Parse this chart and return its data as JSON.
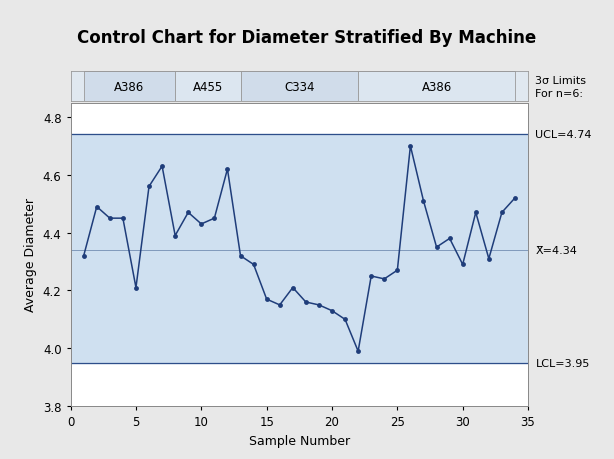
{
  "title": "Control Chart for Diameter Stratified By Machine",
  "xlabel": "Sample Number",
  "ylabel": "Average Diameter",
  "x": [
    1,
    2,
    3,
    4,
    5,
    6,
    7,
    8,
    9,
    10,
    11,
    12,
    13,
    14,
    15,
    16,
    17,
    18,
    19,
    20,
    21,
    22,
    23,
    24,
    25,
    26,
    27,
    28,
    29,
    30,
    31,
    32,
    33,
    34
  ],
  "y": [
    4.32,
    4.49,
    4.45,
    4.45,
    4.21,
    4.56,
    4.63,
    4.39,
    4.47,
    4.43,
    4.45,
    4.62,
    4.32,
    4.29,
    4.17,
    4.15,
    4.21,
    4.16,
    4.15,
    4.13,
    4.1,
    3.99,
    4.25,
    4.24,
    4.27,
    4.7,
    4.51,
    4.35,
    4.38,
    4.29,
    4.47,
    4.31,
    4.47,
    4.52
  ],
  "ucl": 4.74,
  "lcl": 3.95,
  "cl": 4.34,
  "ylim": [
    3.8,
    4.85
  ],
  "xlim": [
    0,
    35
  ],
  "xticks": [
    0,
    5,
    10,
    15,
    20,
    25,
    30,
    35
  ],
  "yticks": [
    3.8,
    4.0,
    4.2,
    4.4,
    4.6,
    4.8
  ],
  "line_color": "#1f3d7a",
  "fill_color": "#cfe0f0",
  "outer_bg": "#e8e8e8",
  "bands": [
    {
      "label": "A386",
      "x_start": 1,
      "x_end": 8
    },
    {
      "label": "A455",
      "x_start": 8,
      "x_end": 13
    },
    {
      "label": "C334",
      "x_start": 13,
      "x_end": 22
    },
    {
      "label": "A386",
      "x_start": 22,
      "x_end": 34
    }
  ],
  "title_fontsize": 12,
  "label_fontsize": 9,
  "tick_fontsize": 8.5,
  "annot_fontsize": 8
}
